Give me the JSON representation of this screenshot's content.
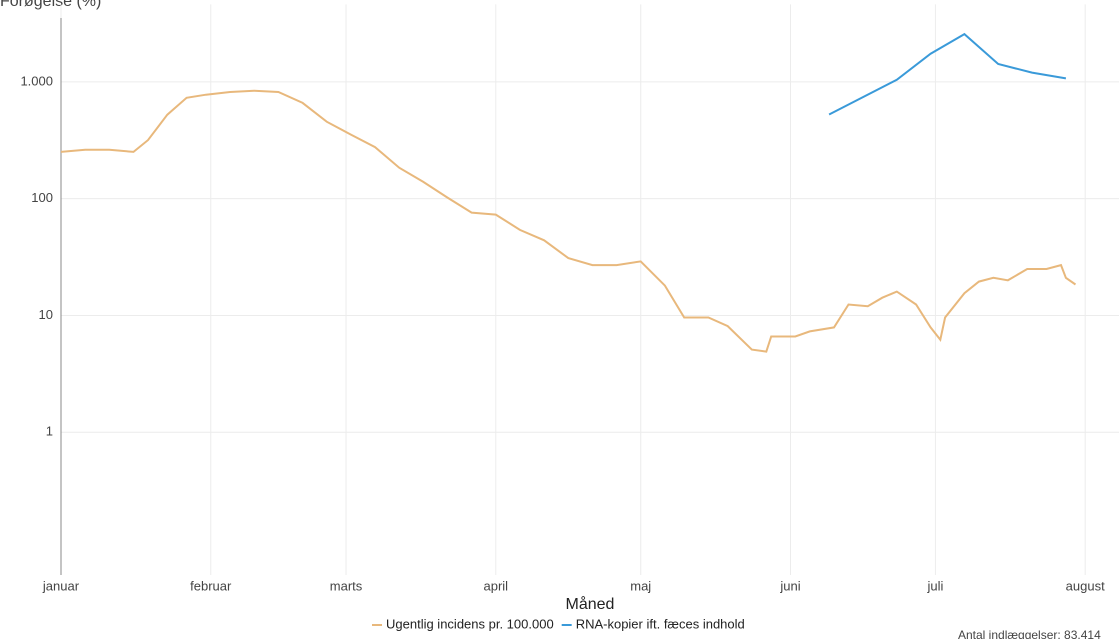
{
  "chart_data": {
    "type": "line",
    "y_label": "Forøgelse (%)",
    "x_label": "Måned",
    "note": "Antal indlæggelser: 83.414",
    "log_scale": true,
    "grid": true,
    "xlim": [
      0,
      219
    ],
    "xticks": [
      {
        "value": 0,
        "label": "januar"
      },
      {
        "value": 31,
        "label": "februar"
      },
      {
        "value": 59,
        "label": "marts"
      },
      {
        "value": 90,
        "label": "april"
      },
      {
        "value": 120,
        "label": "maj"
      },
      {
        "value": 151,
        "label": "juni"
      },
      {
        "value": 181,
        "label": "juli"
      },
      {
        "value": 212,
        "label": "august"
      }
    ],
    "ylim": [
      0.06,
      4600
    ],
    "yticks": [
      1,
      10,
      100,
      {
        "value": 1000,
        "label": "1.000"
      }
    ],
    "series": [
      {
        "name": "Ugentlig incidens pr. 100.000",
        "color": "#e8b87c",
        "x": [
          0,
          5,
          10,
          15,
          18,
          22,
          26,
          30,
          35,
          40,
          45,
          50,
          55,
          60,
          65,
          70,
          75,
          80,
          85,
          90,
          95,
          100,
          105,
          110,
          115,
          120,
          125,
          129,
          134,
          138,
          143,
          146,
          147,
          152,
          155,
          160,
          163,
          167,
          170,
          173,
          177,
          180,
          182,
          183,
          187,
          190,
          193,
          196,
          200,
          204,
          207,
          208,
          210
        ],
        "values": [
          251,
          262,
          262,
          251,
          317,
          523,
          730,
          776,
          818,
          840,
          818,
          660,
          456,
          353,
          276,
          184,
          139,
          102,
          76,
          73,
          54,
          44,
          31,
          27,
          27,
          29,
          18,
          9.6,
          9.6,
          8.1,
          5.1,
          4.9,
          6.6,
          6.6,
          7.3,
          7.9,
          12.4,
          12,
          14.2,
          16,
          12.4,
          7.9,
          6.2,
          9.6,
          15.5,
          19.5,
          21,
          20,
          25,
          25,
          27,
          21,
          18.4
        ]
      },
      {
        "name": "RNA-kopier ift. fæces indhold",
        "color": "#3a9ad9",
        "x": [
          159,
          173,
          180,
          187,
          194,
          201,
          208
        ],
        "values": [
          525,
          1040,
          1740,
          2560,
          1420,
          1200,
          1070
        ]
      }
    ]
  }
}
